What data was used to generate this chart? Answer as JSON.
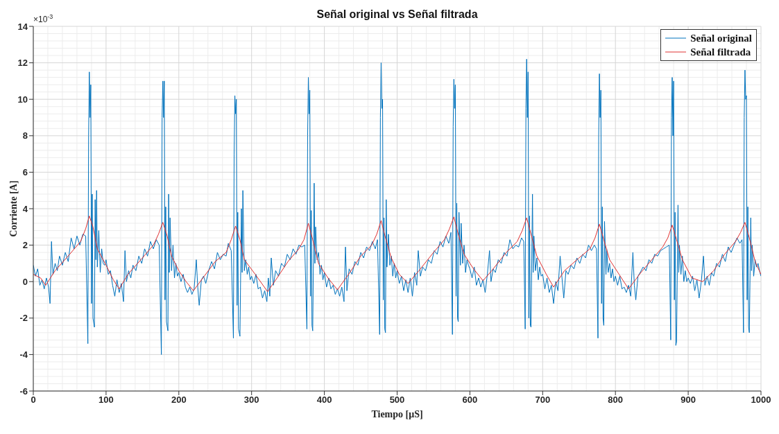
{
  "chart_data": {
    "type": "line",
    "title": "Señal original vs Señal filtrada",
    "xlabel": "Tiempo [μS]",
    "ylabel": "Corriente [A]",
    "annotations": [
      "×10$^{-3}$"
    ],
    "xlim": [
      0,
      1000
    ],
    "xticks": [
      0,
      100,
      200,
      300,
      400,
      500,
      600,
      700,
      800,
      900,
      1000
    ],
    "ylim": [
      -6,
      14
    ],
    "yticks": [
      -6,
      -4,
      -2,
      0,
      2,
      4,
      6,
      8,
      10,
      12,
      14
    ],
    "grid": true,
    "legend": "top right",
    "marker": "none",
    "line_style": "solid",
    "series": [
      {
        "name": "Señal original",
        "color": "#0072bd",
        "x": [
          0,
          3,
          6,
          9,
          12,
          15,
          18,
          21,
          23,
          25,
          27,
          30,
          33,
          36,
          40,
          44,
          48,
          52,
          56,
          60,
          64,
          68,
          72,
          75,
          76,
          77,
          78,
          79,
          80,
          81,
          82,
          84,
          85,
          86,
          87,
          88,
          90,
          92,
          94,
          96,
          98,
          100,
          103,
          106,
          109,
          112,
          115,
          118,
          121,
          124,
          126,
          128,
          131,
          134,
          137,
          141,
          145,
          149,
          153,
          157,
          161,
          165,
          169,
          173,
          176,
          177,
          178,
          179,
          180,
          181,
          182,
          183,
          185,
          186,
          187,
          188,
          190,
          192,
          194,
          196,
          198,
          200,
          203,
          206,
          209,
          212,
          215,
          218,
          221,
          224,
          226,
          228,
          231,
          234,
          237,
          241,
          245,
          249,
          253,
          257,
          261,
          265,
          268,
          272,
          275,
          276,
          277,
          278,
          279,
          280,
          281,
          282,
          284,
          286,
          287,
          288,
          290,
          292,
          294,
          296,
          298,
          300,
          303,
          306,
          309,
          312,
          315,
          318,
          321,
          323,
          325,
          327,
          330,
          333,
          337,
          341,
          345,
          349,
          353,
          357,
          361,
          365,
          369,
          373,
          376,
          377,
          378,
          379,
          380,
          381,
          382,
          383,
          384,
          386,
          387,
          388,
          390,
          392,
          394,
          396,
          398,
          400,
          403,
          406,
          409,
          412,
          415,
          418,
          421,
          424,
          427,
          429,
          431,
          434,
          438,
          442,
          446,
          450,
          454,
          458,
          462,
          466,
          470,
          473,
          476,
          477,
          478,
          479,
          480,
          481,
          482,
          483,
          484,
          485,
          486,
          488,
          490,
          492,
          494,
          496,
          498,
          500,
          503,
          506,
          509,
          512,
          515,
          518,
          521,
          524,
          527,
          529,
          532,
          535,
          539,
          543,
          547,
          551,
          555,
          559,
          563,
          567,
          571,
          574,
          576,
          577,
          578,
          579,
          580,
          581,
          582,
          583,
          584,
          585,
          587,
          588,
          590,
          592,
          594,
          596,
          598,
          600,
          603,
          606,
          609,
          612,
          615,
          618,
          621,
          624,
          627,
          629,
          632,
          635,
          639,
          643,
          647,
          651,
          655,
          659,
          663,
          667,
          671,
          674,
          676,
          677,
          678,
          679,
          680,
          681,
          682,
          683,
          684,
          686,
          687,
          688,
          690,
          692,
          694,
          696,
          698,
          700,
          703,
          706,
          709,
          712,
          715,
          718,
          721,
          724,
          727,
          729,
          732,
          735,
          739,
          743,
          747,
          751,
          755,
          759,
          763,
          767,
          771,
          774,
          776,
          777,
          778,
          779,
          780,
          781,
          782,
          783,
          784,
          785,
          787,
          788,
          790,
          792,
          794,
          796,
          798,
          800,
          803,
          806,
          809,
          812,
          815,
          818,
          821,
          824,
          826,
          828,
          831,
          834,
          838,
          842,
          846,
          850,
          854,
          858,
          862,
          866,
          870,
          874,
          876,
          877,
          878,
          879,
          880,
          881,
          882,
          883,
          884,
          886,
          887,
          888,
          890,
          892,
          894,
          896,
          898,
          900,
          903,
          906,
          909,
          912,
          915,
          918,
          921,
          923,
          926,
          929,
          932,
          935,
          939,
          943,
          947,
          951,
          955,
          959,
          963,
          967,
          971,
          974,
          976,
          977,
          978,
          979,
          980,
          981,
          982,
          983,
          984,
          986,
          987,
          988,
          990,
          992,
          994,
          996,
          998,
          1000
        ],
        "values": [
          0.9,
          0.3,
          0.7,
          -0.2,
          0.1,
          -0.4,
          0.2,
          -0.3,
          -1.2,
          2.2,
          0.4,
          1.0,
          0.6,
          1.4,
          0.9,
          1.6,
          1.1,
          2.4,
          1.8,
          2.5,
          2.0,
          2.6,
          2.5,
          -3.4,
          8.0,
          11.5,
          9.0,
          10.8,
          -1.2,
          4.8,
          -2.0,
          -2.5,
          4.5,
          1.2,
          5.0,
          0.8,
          2.8,
          0.5,
          1.8,
          1.0,
          0.9,
          1.2,
          0.4,
          0.6,
          -0.2,
          -0.8,
          0.1,
          -0.6,
          -0.1,
          -1.1,
          1.7,
          0.0,
          0.6,
          0.2,
          0.9,
          0.6,
          1.4,
          1.0,
          1.8,
          1.4,
          2.2,
          1.8,
          2.3,
          2.0,
          -4.0,
          9.0,
          11.0,
          9.0,
          11.0,
          -1.0,
          4.1,
          -2.2,
          -2.7,
          4.8,
          0.5,
          3.5,
          0.6,
          2.0,
          0.2,
          1.0,
          0.3,
          0.5,
          0.0,
          0.4,
          -0.3,
          -0.6,
          -0.3,
          -0.7,
          -0.4,
          1.2,
          -0.3,
          -1.3,
          0.1,
          0.3,
          -0.1,
          0.6,
          1.1,
          0.7,
          1.6,
          1.2,
          1.5,
          1.4,
          2.1,
          1.7,
          -3.1,
          7.0,
          10.2,
          9.2,
          10.0,
          -1.3,
          3.8,
          -2.6,
          -3.0,
          4.0,
          0.5,
          5.0,
          0.6,
          1.2,
          0.4,
          0.8,
          0.1,
          0.3,
          -0.1,
          0.4,
          -0.4,
          -0.3,
          -0.9,
          -0.5,
          -1.1,
          0.2,
          -0.8,
          1.3,
          -0.2,
          0.6,
          0.3,
          1.0,
          0.8,
          1.5,
          1.2,
          1.8,
          1.5,
          2.0,
          1.9,
          2.0,
          -2.6,
          8.0,
          11.2,
          9.2,
          10.5,
          -0.8,
          3.9,
          -2.4,
          -2.7,
          5.4,
          1.0,
          3.0,
          1.2,
          1.6,
          0.4,
          0.9,
          0.1,
          0.5,
          -0.3,
          0.2,
          -0.4,
          -0.2,
          -0.7,
          -0.4,
          -0.8,
          -0.3,
          -1.1,
          1.9,
          -0.5,
          0.7,
          0.4,
          1.1,
          0.9,
          1.6,
          1.3,
          1.9,
          1.7,
          2.2,
          1.8,
          2.3,
          -2.9,
          9.0,
          12.0,
          9.5,
          10.0,
          -1.0,
          3.5,
          -2.6,
          -2.8,
          4.5,
          0.8,
          2.6,
          0.9,
          1.4,
          0.3,
          1.0,
          0.2,
          0.6,
          -0.1,
          0.3,
          -0.5,
          0.1,
          -0.6,
          0.2,
          -0.8,
          0.5,
          -0.2,
          1.7,
          0.3,
          0.8,
          0.6,
          1.2,
          1.0,
          1.7,
          1.5,
          2.2,
          1.9,
          2.5,
          2.1,
          2.7,
          -2.9,
          8.5,
          11.1,
          9.5,
          10.8,
          -0.8,
          4.3,
          -2.0,
          -2.2,
          3.8,
          0.9,
          3.2,
          1.0,
          2.0,
          0.5,
          1.2,
          0.9,
          0.7,
          0.2,
          0.8,
          -0.2,
          0.2,
          -0.3,
          0.1,
          -0.6,
          0.4,
          1.7,
          0.0,
          0.7,
          0.5,
          1.2,
          1.0,
          1.6,
          1.4,
          2.3,
          1.8,
          2.0,
          1.9,
          2.4,
          2.2,
          -2.6,
          9.5,
          12.2,
          9.0,
          11.5,
          -2.0,
          3.6,
          -2.4,
          -2.5,
          4.8,
          0.5,
          2.5,
          0.6,
          1.3,
          0.1,
          0.8,
          0.3,
          0.4,
          -0.4,
          0.2,
          -0.6,
          -0.2,
          -1.2,
          0.0,
          -0.5,
          1.4,
          0.0,
          -0.9,
          0.6,
          0.4,
          0.9,
          0.7,
          1.3,
          1.0,
          1.5,
          1.3,
          2.0,
          1.7,
          2.0,
          1.8,
          -3.1,
          8.0,
          11.4,
          9.0,
          10.5,
          -1.2,
          4.1,
          -2.0,
          -2.4,
          3.3,
          0.4,
          1.8,
          0.5,
          1.0,
          0.2,
          0.7,
          0.0,
          0.3,
          -0.2,
          0.3,
          -0.4,
          -0.3,
          -0.6,
          -0.2,
          -0.8,
          1.6,
          -0.2,
          -1.0,
          0.3,
          0.5,
          0.8,
          0.6,
          1.2,
          1.0,
          1.5,
          1.4,
          1.7,
          1.8,
          1.9,
          2.0,
          -3.2,
          9.0,
          11.2,
          8.0,
          11.0,
          -1.0,
          3.8,
          -3.5,
          -3.3,
          4.2,
          0.5,
          2.0,
          0.4,
          1.4,
          0.0,
          0.6,
          0.0,
          0.2,
          -0.1,
          0.3,
          -0.5,
          0.1,
          -0.9,
          0.0,
          1.4,
          -0.2,
          0.3,
          -0.2,
          0.5,
          0.3,
          1.0,
          0.8,
          1.5,
          1.1,
          1.9,
          1.6,
          2.0,
          2.4,
          2.1,
          2.3,
          -2.8,
          9.0,
          11.6,
          10.0,
          10.2,
          -1.0,
          4.1,
          -2.5,
          -2.8,
          3.5,
          0.6,
          2.0,
          0.3,
          1.2,
          0.8,
          1.0,
          0.6,
          0.3
        ]
      },
      {
        "name": "Señal filtrada",
        "color": "#e03030",
        "x": [
          0,
          10,
          17,
          30,
          50,
          65,
          72,
          77,
          82,
          88,
          100,
          110,
          118,
          130,
          150,
          165,
          172,
          178,
          184,
          190,
          200,
          210,
          220,
          235,
          250,
          265,
          272,
          278,
          284,
          290,
          305,
          322,
          335,
          350,
          365,
          372,
          378,
          384,
          392,
          405,
          418,
          435,
          450,
          465,
          472,
          478,
          484,
          492,
          503,
          515,
          530,
          550,
          565,
          572,
          578,
          584,
          592,
          605,
          618,
          630,
          650,
          665,
          672,
          678,
          684,
          692,
          705,
          715,
          730,
          750,
          765,
          772,
          778,
          784,
          792,
          805,
          818,
          835,
          850,
          865,
          872,
          878,
          884,
          892,
          905,
          920,
          935,
          950,
          965,
          972,
          978,
          984,
          992,
          1000
        ],
        "values": [
          0.4,
          0.2,
          -0.2,
          0.6,
          1.5,
          2.2,
          2.9,
          3.6,
          3.0,
          1.8,
          0.9,
          0.1,
          -0.4,
          0.4,
          1.3,
          2.0,
          2.6,
          3.25,
          2.5,
          1.4,
          0.6,
          0.0,
          -0.5,
          0.3,
          1.1,
          1.6,
          2.3,
          3.05,
          2.3,
          1.2,
          0.4,
          -0.55,
          0.2,
          1.1,
          1.8,
          2.3,
          3.2,
          2.3,
          1.0,
          0.2,
          -0.45,
          0.5,
          1.4,
          2.0,
          2.6,
          3.35,
          2.4,
          1.3,
          0.4,
          -0.1,
          0.6,
          1.6,
          2.3,
          2.9,
          3.55,
          2.6,
          1.5,
          0.7,
          0.05,
          0.6,
          1.6,
          2.2,
          2.8,
          3.5,
          2.6,
          1.4,
          0.4,
          -0.3,
          0.6,
          1.3,
          1.8,
          2.4,
          3.15,
          2.3,
          1.2,
          0.4,
          -0.4,
          0.5,
          1.2,
          1.9,
          2.4,
          3.1,
          2.3,
          1.2,
          0.2,
          0.0,
          0.6,
          1.5,
          2.2,
          2.7,
          3.25,
          2.4,
          1.1,
          0.4
        ]
      }
    ]
  }
}
